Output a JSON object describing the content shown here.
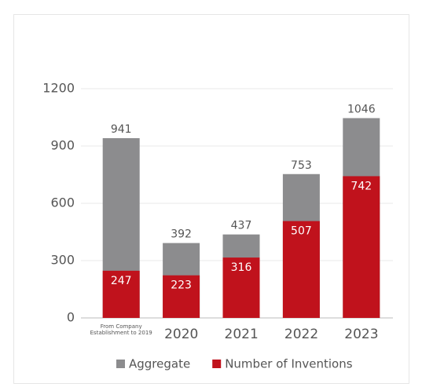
{
  "chart_data": {
    "type": "bar",
    "categories": [
      "From Company Establishment to 2019",
      "2020",
      "2021",
      "2022",
      "2023"
    ],
    "series": [
      {
        "name": "Aggregate",
        "color": "#8c8c8e",
        "values": [
          941,
          392,
          437,
          753,
          1046
        ]
      },
      {
        "name": "Number of Inventions",
        "color": "#c0121c",
        "values": [
          247,
          223,
          316,
          507,
          742
        ]
      }
    ],
    "ylim": [
      0,
      1200
    ],
    "yticks": [
      0,
      300,
      600,
      900,
      1200
    ],
    "grid": true,
    "legend": "bottom"
  }
}
